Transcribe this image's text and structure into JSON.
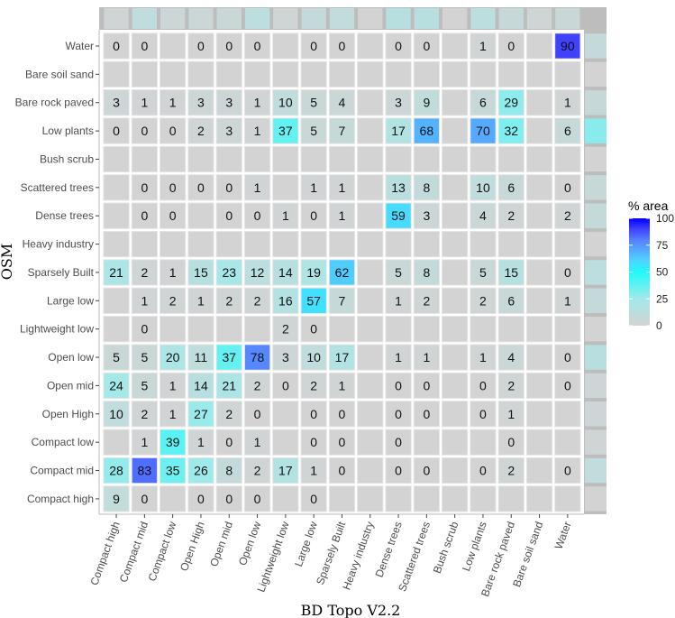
{
  "chart_data": {
    "type": "heatmap",
    "xlabel": "BD Topo V2.2",
    "ylabel": "OSM",
    "legend": {
      "title": "% area",
      "ticks": [
        "100",
        "75",
        "50",
        "25",
        "0"
      ],
      "range": [
        0,
        100
      ],
      "placement": "right"
    },
    "colors": {
      "low": "#d3d3d3",
      "mid": "#00ffff",
      "high": "#0000ff"
    },
    "columns": [
      "Compact high",
      "Compact mid",
      "Compact low",
      "Open High",
      "Open mid",
      "Open low",
      "Lightweight low",
      "Large low",
      "Sparsely Built",
      "Heavy industry",
      "Dense trees",
      "Scattered trees",
      "Bush scrub",
      "Low plants",
      "Bare rock paved",
      "Bare soil sand",
      "Water"
    ],
    "rows": [
      "Water",
      "Bare soil sand",
      "Bare rock paved",
      "Low plants",
      "Bush scrub",
      "Scattered trees",
      "Dense trees",
      "Heavy industry",
      "Sparsely Built",
      "Large low",
      "Lightweight low",
      "Open low",
      "Open mid",
      "Open High",
      "Compact low",
      "Compact mid",
      "Compact high"
    ],
    "values": [
      [
        0,
        0,
        null,
        0,
        0,
        0,
        null,
        0,
        0,
        null,
        0,
        0,
        null,
        1,
        0,
        null,
        90
      ],
      [
        null,
        null,
        null,
        null,
        null,
        null,
        null,
        null,
        null,
        null,
        null,
        null,
        null,
        null,
        null,
        null,
        null
      ],
      [
        3,
        1,
        1,
        3,
        3,
        1,
        10,
        5,
        4,
        null,
        3,
        9,
        null,
        6,
        29,
        null,
        1
      ],
      [
        0,
        0,
        0,
        2,
        3,
        1,
        37,
        5,
        7,
        null,
        17,
        68,
        null,
        70,
        32,
        null,
        6
      ],
      [
        null,
        null,
        null,
        null,
        null,
        null,
        null,
        null,
        null,
        null,
        null,
        null,
        null,
        null,
        null,
        null,
        null
      ],
      [
        null,
        0,
        0,
        0,
        0,
        1,
        null,
        1,
        1,
        null,
        13,
        8,
        null,
        10,
        6,
        null,
        0
      ],
      [
        null,
        0,
        0,
        null,
        0,
        0,
        1,
        0,
        1,
        null,
        59,
        3,
        null,
        4,
        2,
        null,
        2
      ],
      [
        null,
        null,
        null,
        null,
        null,
        null,
        null,
        null,
        null,
        null,
        null,
        null,
        null,
        null,
        null,
        null,
        null
      ],
      [
        21,
        2,
        1,
        15,
        23,
        12,
        14,
        19,
        62,
        null,
        5,
        8,
        null,
        5,
        15,
        null,
        0
      ],
      [
        null,
        1,
        2,
        1,
        2,
        2,
        16,
        57,
        7,
        null,
        1,
        2,
        null,
        2,
        6,
        null,
        1
      ],
      [
        null,
        0,
        null,
        null,
        null,
        null,
        2,
        0,
        null,
        null,
        null,
        null,
        null,
        null,
        null,
        null,
        null
      ],
      [
        5,
        5,
        20,
        11,
        37,
        78,
        3,
        10,
        17,
        null,
        1,
        1,
        null,
        1,
        4,
        null,
        0
      ],
      [
        24,
        5,
        1,
        14,
        21,
        2,
        0,
        2,
        1,
        null,
        0,
        0,
        null,
        0,
        2,
        null,
        0
      ],
      [
        10,
        2,
        1,
        27,
        2,
        0,
        null,
        0,
        0,
        null,
        0,
        0,
        null,
        0,
        1,
        null,
        null
      ],
      [
        null,
        1,
        39,
        1,
        0,
        1,
        null,
        0,
        0,
        null,
        0,
        null,
        null,
        null,
        0,
        null,
        null
      ],
      [
        28,
        83,
        35,
        26,
        8,
        2,
        17,
        1,
        0,
        null,
        0,
        0,
        null,
        0,
        2,
        null,
        0
      ],
      [
        9,
        0,
        null,
        0,
        0,
        0,
        null,
        0,
        null,
        null,
        null,
        null,
        null,
        null,
        null,
        null,
        null
      ]
    ],
    "column_marginal": [
      2,
      10,
      3,
      4,
      5,
      12,
      2,
      8,
      10,
      0,
      14,
      14,
      0,
      12,
      6,
      2,
      5
    ],
    "row_marginal": [
      8,
      0,
      6,
      30,
      0,
      6,
      8,
      0,
      12,
      8,
      0,
      14,
      3,
      3,
      2,
      10,
      0
    ]
  }
}
